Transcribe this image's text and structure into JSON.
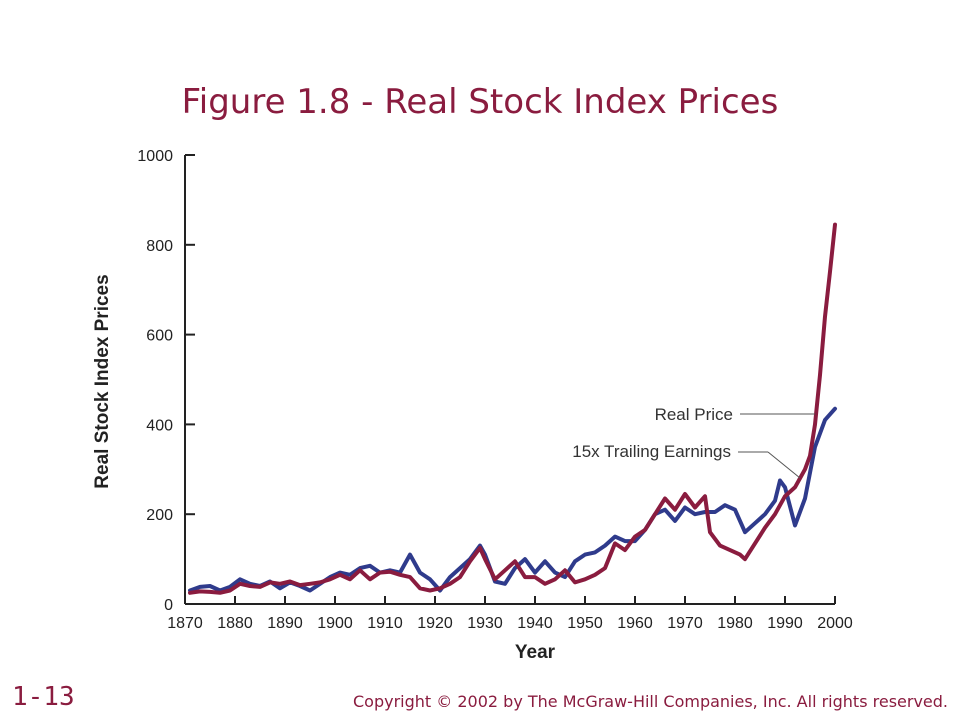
{
  "slide": {
    "title": "Figure 1.8 - Real Stock Index Prices",
    "page_number": "1-13",
    "copyright": "Copyright © 2002 by The McGraw-Hill Companies, Inc.  All rights reserved."
  },
  "chart_data": {
    "type": "line",
    "title": "Figure 1.8 - Real Stock Index Prices",
    "xlabel": "Year",
    "ylabel": "Real Stock Index Prices",
    "xlim": [
      1870,
      2000
    ],
    "ylim": [
      0,
      1000
    ],
    "x_ticks": [
      1870,
      1880,
      1890,
      1900,
      1910,
      1920,
      1930,
      1940,
      1950,
      1960,
      1970,
      1980,
      1990,
      2000
    ],
    "y_ticks": [
      0,
      200,
      400,
      600,
      800,
      1000
    ],
    "grid": false,
    "legend": "annotation labels with leader lines, right side",
    "series": [
      {
        "name": "Real Price",
        "color": "#8a1c3f",
        "x": [
          1871,
          1873,
          1875,
          1877,
          1879,
          1881,
          1883,
          1885,
          1887,
          1889,
          1891,
          1893,
          1895,
          1897,
          1899,
          1901,
          1903,
          1905,
          1907,
          1909,
          1911,
          1913,
          1915,
          1917,
          1919,
          1921,
          1923,
          1925,
          1927,
          1929,
          1930,
          1932,
          1934,
          1936,
          1938,
          1940,
          1942,
          1944,
          1946,
          1948,
          1950,
          1952,
          1954,
          1956,
          1958,
          1960,
          1962,
          1964,
          1966,
          1968,
          1970,
          1972,
          1974,
          1975,
          1977,
          1979,
          1981,
          1982,
          1984,
          1986,
          1988,
          1990,
          1992,
          1994,
          1995,
          1996,
          1997,
          1998,
          1999,
          2000
        ],
        "y": [
          25,
          28,
          27,
          25,
          30,
          45,
          40,
          38,
          48,
          45,
          50,
          42,
          45,
          48,
          55,
          65,
          55,
          75,
          55,
          70,
          72,
          65,
          60,
          35,
          30,
          35,
          45,
          60,
          95,
          125,
          100,
          55,
          75,
          95,
          60,
          60,
          45,
          55,
          75,
          48,
          55,
          65,
          80,
          135,
          120,
          150,
          165,
          200,
          235,
          210,
          245,
          215,
          240,
          160,
          130,
          120,
          110,
          100,
          135,
          170,
          200,
          240,
          260,
          300,
          330,
          400,
          510,
          640,
          740,
          845
        ]
      },
      {
        "name": "15x Trailing Earnings",
        "color": "#2f3b8c",
        "x": [
          1871,
          1873,
          1875,
          1877,
          1879,
          1881,
          1883,
          1885,
          1887,
          1889,
          1891,
          1893,
          1895,
          1897,
          1899,
          1901,
          1903,
          1905,
          1907,
          1909,
          1911,
          1913,
          1915,
          1917,
          1919,
          1921,
          1923,
          1925,
          1927,
          1929,
          1930,
          1932,
          1934,
          1936,
          1938,
          1940,
          1942,
          1944,
          1946,
          1948,
          1950,
          1952,
          1954,
          1956,
          1958,
          1960,
          1962,
          1964,
          1966,
          1968,
          1970,
          1972,
          1974,
          1976,
          1978,
          1980,
          1982,
          1984,
          1986,
          1988,
          1989,
          1990,
          1992,
          1994,
          1996,
          1998,
          2000
        ],
        "y": [
          30,
          38,
          40,
          30,
          38,
          55,
          45,
          40,
          50,
          35,
          48,
          40,
          30,
          45,
          60,
          70,
          65,
          80,
          85,
          70,
          75,
          70,
          110,
          70,
          55,
          30,
          60,
          80,
          100,
          130,
          110,
          50,
          45,
          80,
          100,
          70,
          95,
          70,
          60,
          95,
          110,
          115,
          130,
          150,
          140,
          140,
          165,
          200,
          210,
          185,
          215,
          200,
          205,
          205,
          220,
          210,
          160,
          180,
          200,
          230,
          275,
          260,
          175,
          235,
          350,
          410,
          435
        ]
      }
    ]
  }
}
